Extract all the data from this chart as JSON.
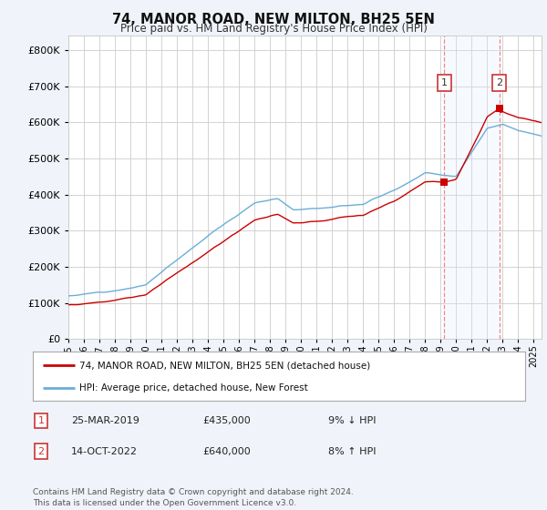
{
  "title": "74, MANOR ROAD, NEW MILTON, BH25 5EN",
  "subtitle": "Price paid vs. HM Land Registry's House Price Index (HPI)",
  "ytick_values": [
    0,
    100000,
    200000,
    300000,
    400000,
    500000,
    600000,
    700000,
    800000
  ],
  "ylim": [
    0,
    840000
  ],
  "hpi_color": "#6baed6",
  "price_color": "#cc0000",
  "sale1_x": 2019.23,
  "sale1_price": 435000,
  "sale2_x": 2022.79,
  "sale2_price": 640000,
  "legend_line1": "74, MANOR ROAD, NEW MILTON, BH25 5EN (detached house)",
  "legend_line2": "HPI: Average price, detached house, New Forest",
  "footnote": "Contains HM Land Registry data © Crown copyright and database right 2024.\nThis data is licensed under the Open Government Licence v3.0.",
  "background_color": "#f0f4fa",
  "plot_bg_color": "#ffffff",
  "shade_color": "#ddeeff",
  "dashed_color": "#ee8888",
  "grid_color": "#cccccc",
  "xstart": 1995,
  "xend": 2025.5
}
